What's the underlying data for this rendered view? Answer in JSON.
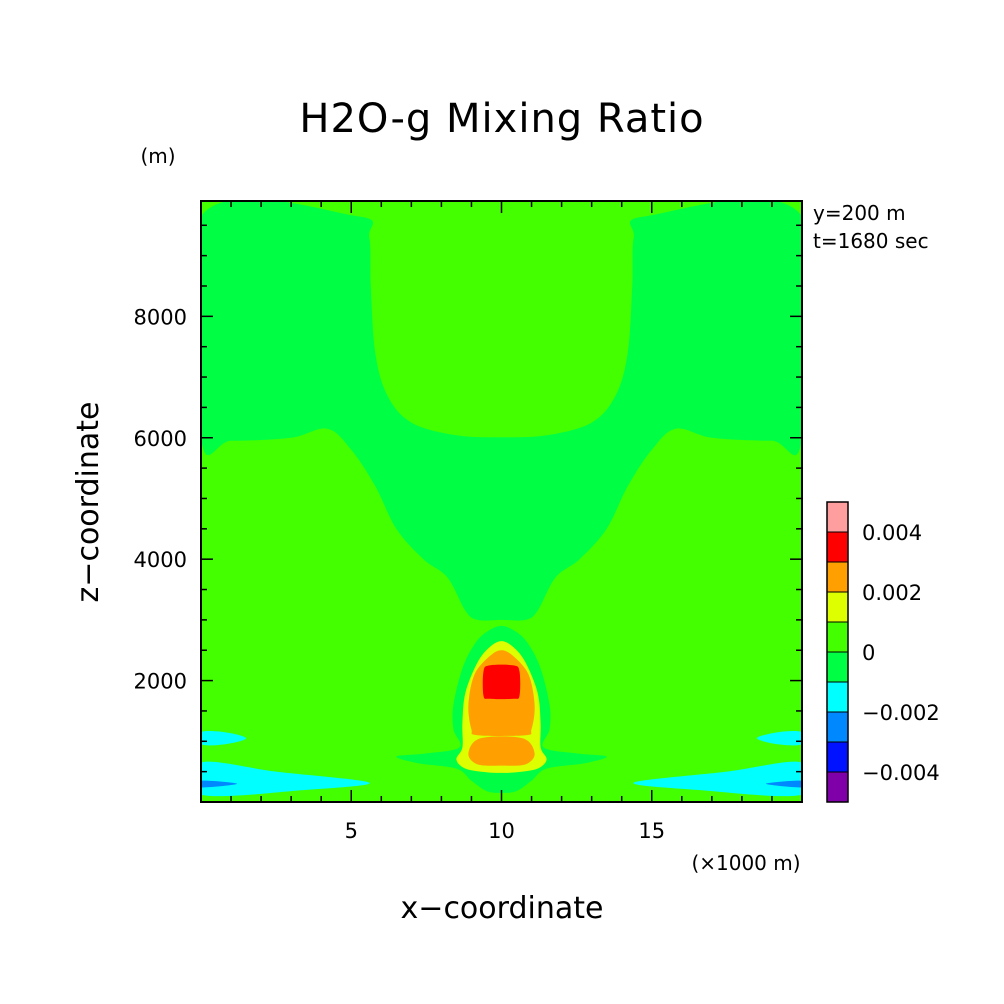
{
  "chart_data": {
    "type": "heatmap",
    "title": "H2O-g Mixing Ratio",
    "xlabel": "x−coordinate",
    "ylabel": "z−coordinate",
    "x_unit": "(×1000 m)",
    "y_unit": "(m)",
    "annotations": [
      "y=200 m",
      "t=1680 sec"
    ],
    "xlim": [
      0,
      20
    ],
    "ylim": [
      0,
      9900
    ],
    "x_ticks": [
      5,
      10,
      15
    ],
    "x_tick_labels": [
      "5",
      "10",
      "15"
    ],
    "y_ticks": [
      2000,
      4000,
      6000,
      8000
    ],
    "y_tick_labels": [
      "2000",
      "4000",
      "6000",
      "8000"
    ],
    "grid": false,
    "colorbar": {
      "position": "right",
      "levels": [
        -0.005,
        -0.004,
        -0.003,
        -0.002,
        -0.001,
        0,
        0.001,
        0.002,
        0.003,
        0.004,
        0.005
      ],
      "colors": [
        "#7f00a8",
        "#0012ff",
        "#0088ff",
        "#00ffff",
        "#00ff44",
        "#44ff00",
        "#ddff00",
        "#ffa000",
        "#ff0000",
        "#ff9e9e"
      ],
      "tick_values": [
        -0.004,
        -0.002,
        0,
        0.002,
        0.004
      ],
      "tick_labels": [
        "−0.004",
        "−0.002",
        "0",
        "0.002",
        "0.004"
      ]
    },
    "regions": [
      {
        "level": 5,
        "points": [
          [
            0,
            0
          ],
          [
            20,
            0
          ],
          [
            20,
            9900
          ],
          [
            0,
            9900
          ]
        ]
      },
      {
        "level": 4,
        "points": [
          [
            0,
            9650
          ],
          [
            5.2,
            9650
          ],
          [
            5.6,
            9300
          ],
          [
            5.65,
            8500
          ],
          [
            5.8,
            7400
          ],
          [
            6.2,
            6700
          ],
          [
            7.0,
            6250
          ],
          [
            8.5,
            6040
          ],
          [
            10,
            6010
          ],
          [
            11.5,
            6040
          ],
          [
            13,
            6250
          ],
          [
            13.8,
            6700
          ],
          [
            14.2,
            7400
          ],
          [
            14.35,
            8500
          ],
          [
            14.4,
            9300
          ],
          [
            14.8,
            9650
          ],
          [
            20,
            9650
          ],
          [
            20,
            6000
          ],
          [
            19,
            5950
          ],
          [
            17,
            6000
          ],
          [
            15.8,
            6150
          ],
          [
            15.0,
            5800
          ],
          [
            14.2,
            5200
          ],
          [
            13.5,
            4500
          ],
          [
            12.6,
            4000
          ],
          [
            11.8,
            3700
          ],
          [
            11.2,
            3150
          ],
          [
            10.8,
            3000
          ],
          [
            10,
            3000
          ],
          [
            9.2,
            3000
          ],
          [
            8.8,
            3150
          ],
          [
            8.2,
            3700
          ],
          [
            7.4,
            4000
          ],
          [
            6.5,
            4500
          ],
          [
            5.8,
            5200
          ],
          [
            5.0,
            5800
          ],
          [
            4.2,
            6150
          ],
          [
            3,
            6000
          ],
          [
            1,
            5950
          ],
          [
            0,
            6000
          ]
        ]
      },
      {
        "level": 5,
        "points": [
          [
            0,
            3550
          ],
          [
            2.5,
            3600
          ],
          [
            3.5,
            3550
          ],
          [
            4.5,
            3500
          ],
          [
            5.8,
            3300
          ],
          [
            7.0,
            3100
          ],
          [
            8.0,
            3000
          ],
          [
            8.6,
            2900
          ],
          [
            9.0,
            2700
          ],
          [
            9.4,
            2500
          ],
          [
            10,
            2450
          ],
          [
            10.6,
            2500
          ],
          [
            11.0,
            2700
          ],
          [
            11.4,
            2900
          ],
          [
            12.0,
            3000
          ],
          [
            13.0,
            3100
          ],
          [
            14.2,
            3300
          ],
          [
            15.5,
            3500
          ],
          [
            16.5,
            3550
          ],
          [
            17.5,
            3600
          ],
          [
            20,
            3550
          ],
          [
            20,
            3450
          ],
          [
            17.0,
            3300
          ],
          [
            14.8,
            2900
          ],
          [
            15.6,
            2600
          ],
          [
            17.2,
            2150
          ],
          [
            20,
            1950
          ],
          [
            20,
            1250
          ],
          [
            17,
            1000
          ],
          [
            13.5,
            820
          ],
          [
            12.5,
            700
          ],
          [
            11.5,
            600
          ],
          [
            10.8,
            500
          ],
          [
            10,
            470
          ],
          [
            9.2,
            500
          ],
          [
            8.5,
            600
          ],
          [
            7.5,
            700
          ],
          [
            6.5,
            820
          ],
          [
            3,
            1000
          ],
          [
            0,
            1250
          ],
          [
            0,
            1950
          ],
          [
            2.8,
            2150
          ],
          [
            4.4,
            2600
          ],
          [
            5.2,
            2900
          ],
          [
            3.0,
            3300
          ],
          [
            0,
            3450
          ]
        ]
      },
      {
        "level": 4,
        "points": [
          [
            10,
            2900
          ],
          [
            10.5,
            2800
          ],
          [
            10.9,
            2600
          ],
          [
            11.3,
            2200
          ],
          [
            11.6,
            1600
          ],
          [
            11.6,
            1200
          ],
          [
            11.4,
            900
          ],
          [
            12.5,
            800
          ],
          [
            13.5,
            750
          ],
          [
            12.8,
            640
          ],
          [
            11.5,
            550
          ],
          [
            11,
            350
          ],
          [
            10.5,
            180
          ],
          [
            10,
            150
          ],
          [
            9.5,
            180
          ],
          [
            9,
            350
          ],
          [
            8.5,
            550
          ],
          [
            7.2,
            640
          ],
          [
            6.5,
            750
          ],
          [
            7.5,
            800
          ],
          [
            8.6,
            900
          ],
          [
            8.4,
            1200
          ],
          [
            8.4,
            1600
          ],
          [
            8.7,
            2200
          ],
          [
            9.1,
            2600
          ],
          [
            9.5,
            2800
          ]
        ]
      },
      {
        "level": 6,
        "points": [
          [
            10,
            2650
          ],
          [
            10.4,
            2550
          ],
          [
            10.8,
            2300
          ],
          [
            11.2,
            1800
          ],
          [
            11.3,
            1300
          ],
          [
            11.3,
            900
          ],
          [
            11.5,
            700
          ],
          [
            11.2,
            550
          ],
          [
            10.5,
            490
          ],
          [
            10,
            480
          ],
          [
            9.5,
            490
          ],
          [
            8.8,
            550
          ],
          [
            8.5,
            700
          ],
          [
            8.7,
            900
          ],
          [
            8.7,
            1300
          ],
          [
            8.8,
            1800
          ],
          [
            9.2,
            2300
          ],
          [
            9.6,
            2550
          ]
        ]
      },
      {
        "level": 7,
        "points": [
          [
            10,
            2500
          ],
          [
            10.4,
            2400
          ],
          [
            10.9,
            2100
          ],
          [
            11.1,
            1600
          ],
          [
            11.0,
            1200
          ],
          [
            10.8,
            1100
          ],
          [
            9.2,
            1100
          ],
          [
            9.0,
            1200
          ],
          [
            8.9,
            1600
          ],
          [
            9.1,
            2100
          ],
          [
            9.6,
            2400
          ]
        ]
      },
      {
        "level": 7,
        "points": [
          [
            9.3,
            1050
          ],
          [
            10.7,
            1050
          ],
          [
            11.1,
            800
          ],
          [
            10.8,
            620
          ],
          [
            10,
            600
          ],
          [
            9.2,
            620
          ],
          [
            8.9,
            800
          ]
        ]
      },
      {
        "level": 8,
        "points": [
          [
            9.6,
            2250
          ],
          [
            10.4,
            2250
          ],
          [
            10.6,
            2150
          ],
          [
            10.6,
            1750
          ],
          [
            10.4,
            1700
          ],
          [
            9.6,
            1700
          ],
          [
            9.4,
            1750
          ],
          [
            9.4,
            2150
          ]
        ]
      },
      {
        "level": 3,
        "points": [
          [
            0,
            1150
          ],
          [
            0.8,
            1150
          ],
          [
            1.5,
            1050
          ],
          [
            0.8,
            950
          ],
          [
            0,
            950
          ]
        ]
      },
      {
        "level": 3,
        "points": [
          [
            0,
            650
          ],
          [
            2.5,
            500
          ],
          [
            5.6,
            320
          ],
          [
            3.5,
            200
          ],
          [
            0,
            120
          ]
        ]
      },
      {
        "level": 2,
        "points": [
          [
            0,
            350
          ],
          [
            1.2,
            300
          ],
          [
            0,
            240
          ]
        ]
      },
      {
        "level": 3,
        "points": [
          [
            20,
            1150
          ],
          [
            19.2,
            1150
          ],
          [
            18.5,
            1050
          ],
          [
            19.2,
            950
          ],
          [
            20,
            950
          ]
        ]
      },
      {
        "level": 3,
        "points": [
          [
            20,
            650
          ],
          [
            17.5,
            500
          ],
          [
            14.4,
            320
          ],
          [
            16.5,
            200
          ],
          [
            20,
            120
          ]
        ]
      },
      {
        "level": 2,
        "points": [
          [
            20,
            350
          ],
          [
            18.8,
            300
          ],
          [
            20,
            240
          ]
        ]
      }
    ]
  }
}
